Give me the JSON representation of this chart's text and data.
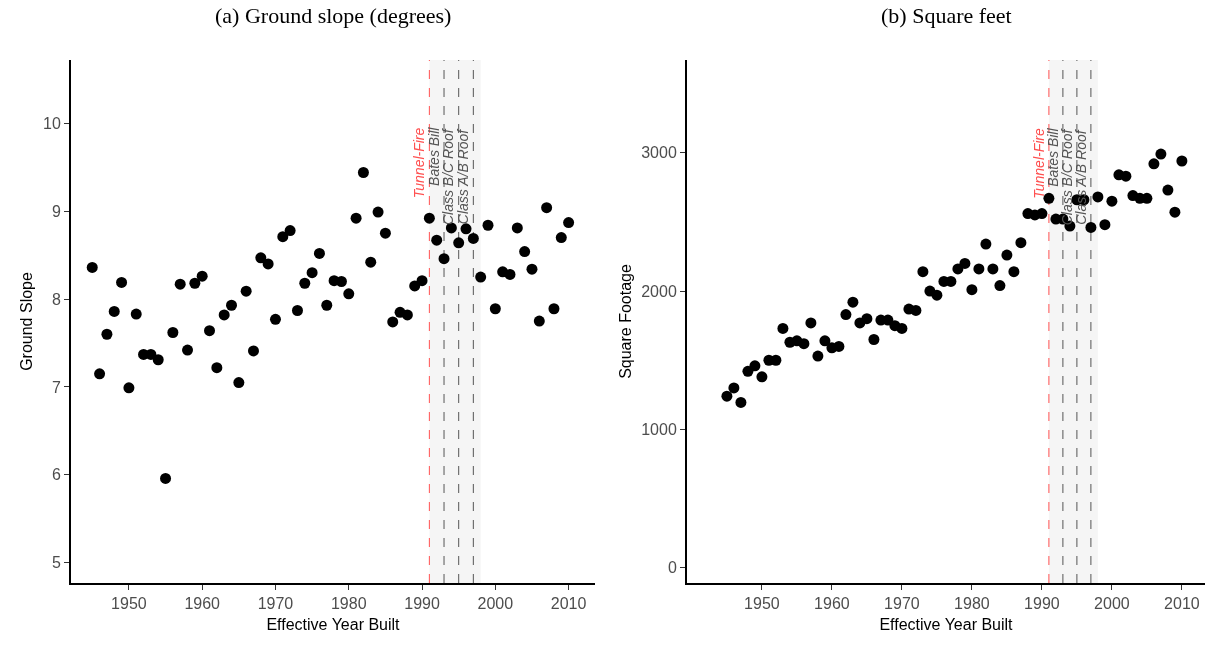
{
  "chart_data": [
    {
      "type": "scatter",
      "title": "(a) Ground slope (degrees)",
      "xlabel": "Effective Year Built",
      "ylabel": "Ground Slope",
      "color": "#000000",
      "marker": "circle",
      "grid": false,
      "x": [
        1945,
        1946,
        1947,
        1948,
        1949,
        1950,
        1951,
        1952,
        1953,
        1954,
        1955,
        1956,
        1957,
        1958,
        1959,
        1960,
        1961,
        1962,
        1963,
        1964,
        1965,
        1966,
        1967,
        1968,
        1969,
        1970,
        1971,
        1972,
        1973,
        1974,
        1975,
        1976,
        1977,
        1978,
        1979,
        1980,
        1981,
        1982,
        1983,
        1984,
        1985,
        1986,
        1987,
        1988,
        1989,
        1990,
        1991,
        1992,
        1993,
        1994,
        1995,
        1996,
        1997,
        1998,
        1999,
        2000,
        2001,
        2002,
        2003,
        2004,
        2005,
        2006,
        2007,
        2008,
        2009,
        2010
      ],
      "values": [
        8.36,
        7.15,
        7.6,
        7.86,
        8.19,
        6.99,
        7.83,
        7.37,
        7.37,
        7.31,
        5.96,
        7.62,
        8.17,
        7.42,
        8.18,
        8.26,
        7.64,
        7.22,
        7.82,
        7.93,
        7.05,
        8.09,
        7.41,
        8.47,
        8.4,
        7.77,
        8.71,
        8.78,
        7.87,
        8.18,
        8.3,
        8.52,
        7.93,
        8.21,
        8.2,
        8.06,
        8.92,
        9.44,
        8.42,
        8.99,
        8.75,
        7.74,
        7.85,
        7.82,
        8.15,
        8.21,
        8.92,
        8.67,
        8.46,
        8.81,
        8.64,
        8.8,
        8.69,
        8.25,
        8.84,
        7.89,
        8.31,
        8.28,
        8.81,
        8.54,
        8.34,
        7.75,
        9.04,
        7.89,
        8.7,
        8.87
      ],
      "xlim": [
        1942.1,
        2013.6
      ],
      "ylim": [
        4.77,
        10.72
      ],
      "xticks": [
        1950,
        1960,
        1970,
        1980,
        1990,
        2000,
        2010
      ],
      "yticks": [
        5,
        6,
        7,
        8,
        9,
        10
      ],
      "bands": [
        {
          "axis": "x",
          "from": 1991,
          "to": 1998,
          "color": "#f5f5f5"
        }
      ],
      "ref_lines": [
        {
          "axis": "x",
          "value": 1991,
          "label": "Tunnel-Fire",
          "color": "#ff5050",
          "line_style": "dashed"
        },
        {
          "axis": "x",
          "value": 1993,
          "label": "Bates Bill",
          "color": "#555555",
          "line_style": "dashed"
        },
        {
          "axis": "x",
          "value": 1995,
          "label": "Class B/C Roof",
          "color": "#555555",
          "line_style": "dashed"
        },
        {
          "axis": "x",
          "value": 1997,
          "label": "Class A/B Roof",
          "color": "#555555",
          "line_style": "dashed"
        }
      ]
    },
    {
      "type": "scatter",
      "title": "(b) Square feet",
      "xlabel": "Effective Year Built",
      "ylabel": "Square Footage",
      "color": "#000000",
      "marker": "circle",
      "grid": false,
      "x": [
        1945,
        1946,
        1947,
        1948,
        1949,
        1950,
        1951,
        1952,
        1953,
        1954,
        1955,
        1956,
        1957,
        1958,
        1959,
        1960,
        1961,
        1962,
        1963,
        1964,
        1965,
        1966,
        1967,
        1968,
        1969,
        1970,
        1971,
        1972,
        1973,
        1974,
        1975,
        1976,
        1977,
        1978,
        1979,
        1980,
        1981,
        1982,
        1983,
        1984,
        1985,
        1986,
        1987,
        1988,
        1989,
        1990,
        1991,
        1992,
        1993,
        1994,
        1995,
        1996,
        1997,
        1998,
        1999,
        2000,
        2001,
        2002,
        2003,
        2004,
        2005,
        2006,
        2007,
        2008,
        2009,
        2010
      ],
      "values": [
        1240,
        1300,
        1195,
        1420,
        1460,
        1380,
        1500,
        1500,
        1730,
        1630,
        1640,
        1620,
        1770,
        1530,
        1640,
        1590,
        1600,
        1830,
        1920,
        1770,
        1800,
        1650,
        1790,
        1790,
        1750,
        1730,
        1870,
        1860,
        2140,
        2000,
        1970,
        2070,
        2070,
        2160,
        2200,
        2010,
        2160,
        2340,
        2160,
        2040,
        2260,
        2140,
        2350,
        2560,
        2550,
        2560,
        2670,
        2520,
        2520,
        2470,
        2660,
        2660,
        2460,
        2680,
        2480,
        2650,
        2840,
        2830,
        2690,
        2670,
        2670,
        2920,
        2990,
        2730,
        2570,
        2940
      ],
      "xlim": [
        1939.3,
        2013.3
      ],
      "ylim": [
        -110,
        3670
      ],
      "xticks": [
        1950,
        1960,
        1970,
        1980,
        1990,
        2000,
        2010
      ],
      "yticks": [
        0,
        1000,
        2000,
        3000
      ],
      "bands": [
        {
          "axis": "x",
          "from": 1991,
          "to": 1998,
          "color": "#f5f5f5"
        }
      ],
      "ref_lines": [
        {
          "axis": "x",
          "value": 1991,
          "label": "Tunnel-Fire",
          "color": "#ff5050",
          "line_style": "dashed"
        },
        {
          "axis": "x",
          "value": 1993,
          "label": "Bates Bill",
          "color": "#555555",
          "line_style": "dashed"
        },
        {
          "axis": "x",
          "value": 1995,
          "label": "Class B/C Roof",
          "color": "#555555",
          "line_style": "dashed"
        },
        {
          "axis": "x",
          "value": 1997,
          "label": "Class A/B Roof",
          "color": "#555555",
          "line_style": "dashed"
        }
      ]
    }
  ]
}
